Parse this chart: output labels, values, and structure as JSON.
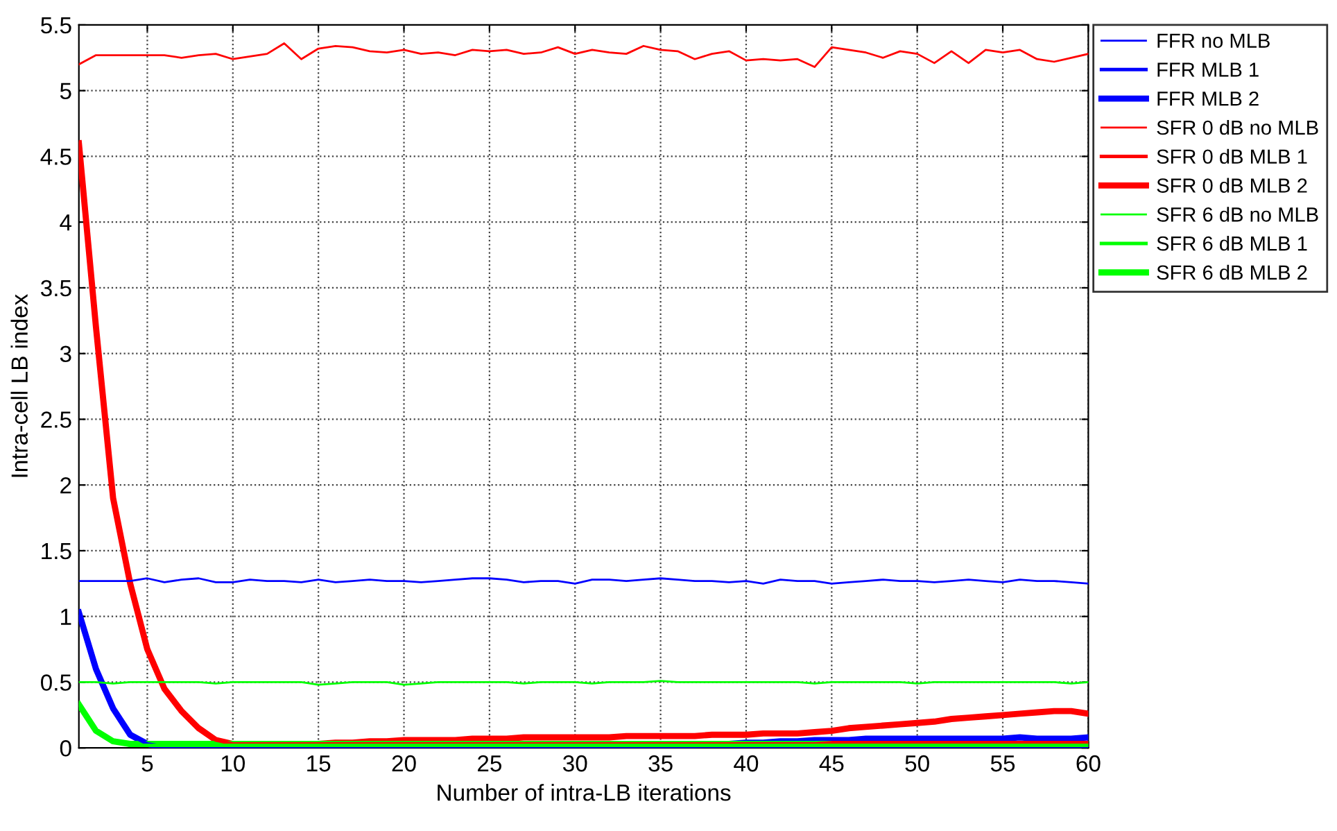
{
  "chart_data": {
    "type": "line",
    "xlabel": "Number of intra-LB iterations",
    "ylabel": "Intra-cell LB index",
    "x": [
      1,
      2,
      3,
      4,
      5,
      6,
      7,
      8,
      9,
      10,
      11,
      12,
      13,
      14,
      15,
      16,
      17,
      18,
      19,
      20,
      21,
      22,
      23,
      24,
      25,
      26,
      27,
      28,
      29,
      30,
      31,
      32,
      33,
      34,
      35,
      36,
      37,
      38,
      39,
      40,
      41,
      42,
      43,
      44,
      45,
      46,
      47,
      48,
      49,
      50,
      51,
      52,
      53,
      54,
      55,
      56,
      57,
      58,
      59,
      60
    ],
    "xlim": [
      1,
      60
    ],
    "xticks": [
      5,
      10,
      15,
      20,
      25,
      30,
      35,
      40,
      45,
      50,
      55,
      60
    ],
    "ylim": [
      0,
      5.5
    ],
    "yticks": [
      0,
      0.5,
      1,
      1.5,
      2,
      2.5,
      3,
      3.5,
      4,
      4.5,
      5,
      5.5
    ],
    "grid": true,
    "legend": "top right",
    "line_style": "solid",
    "marker": "none",
    "series": [
      {
        "name": "FFR no MLB",
        "color": "#0000ff",
        "values": [
          1.27,
          1.27,
          1.27,
          1.27,
          1.29,
          1.26,
          1.28,
          1.29,
          1.26,
          1.26,
          1.28,
          1.27,
          1.27,
          1.26,
          1.28,
          1.26,
          1.27,
          1.28,
          1.27,
          1.27,
          1.26,
          1.27,
          1.28,
          1.29,
          1.29,
          1.28,
          1.26,
          1.27,
          1.27,
          1.25,
          1.28,
          1.28,
          1.27,
          1.28,
          1.29,
          1.28,
          1.27,
          1.27,
          1.26,
          1.27,
          1.25,
          1.28,
          1.27,
          1.27,
          1.25,
          1.26,
          1.27,
          1.28,
          1.27,
          1.27,
          1.26,
          1.27,
          1.28,
          1.27,
          1.26,
          1.28,
          1.27,
          1.27,
          1.26,
          1.25
        ]
      },
      {
        "name": "FFR MLB 1",
        "color": "#0000ff",
        "values": [
          1.0,
          0.6,
          0.3,
          0.1,
          0.03,
          0.01,
          0.01,
          0.01,
          0.01,
          0.01,
          0.01,
          0.01,
          0.01,
          0.01,
          0.01,
          0.01,
          0.01,
          0.01,
          0.01,
          0.01,
          0.01,
          0.01,
          0.01,
          0.01,
          0.01,
          0.01,
          0.01,
          0.01,
          0.01,
          0.01,
          0.01,
          0.01,
          0.01,
          0.01,
          0.01,
          0.01,
          0.01,
          0.01,
          0.01,
          0.01,
          0.01,
          0.01,
          0.01,
          0.01,
          0.01,
          0.01,
          0.01,
          0.01,
          0.01,
          0.01,
          0.01,
          0.01,
          0.01,
          0.01,
          0.01,
          0.01,
          0.01,
          0.01,
          0.01,
          0.01
        ]
      },
      {
        "name": "FFR MLB 2",
        "color": "#0000ff",
        "values": [
          1.03,
          0.6,
          0.3,
          0.1,
          0.03,
          0.0,
          0.0,
          0.0,
          0.0,
          0.0,
          0.0,
          0.0,
          0.0,
          0.0,
          0.0,
          0.0,
          0.0,
          0.0,
          0.0,
          0.0,
          0.0,
          0.0,
          0.0,
          0.0,
          0.0,
          0.0,
          0.0,
          0.0,
          0.0,
          0.0,
          0.01,
          0.01,
          0.01,
          0.01,
          0.02,
          0.02,
          0.02,
          0.03,
          0.03,
          0.04,
          0.04,
          0.05,
          0.05,
          0.06,
          0.06,
          0.06,
          0.07,
          0.07,
          0.07,
          0.07,
          0.07,
          0.07,
          0.07,
          0.07,
          0.07,
          0.08,
          0.07,
          0.07,
          0.07,
          0.08
        ]
      },
      {
        "name": "SFR 0 dB no MLB",
        "color": "#ff0000",
        "values": [
          5.2,
          5.27,
          5.27,
          5.27,
          5.27,
          5.27,
          5.25,
          5.27,
          5.28,
          5.24,
          5.26,
          5.28,
          5.36,
          5.24,
          5.32,
          5.34,
          5.33,
          5.3,
          5.29,
          5.31,
          5.28,
          5.29,
          5.27,
          5.31,
          5.3,
          5.31,
          5.28,
          5.29,
          5.33,
          5.28,
          5.31,
          5.29,
          5.28,
          5.34,
          5.31,
          5.3,
          5.24,
          5.28,
          5.3,
          5.23,
          5.24,
          5.23,
          5.24,
          5.18,
          5.33,
          5.31,
          5.29,
          5.25,
          5.3,
          5.28,
          5.21,
          5.3,
          5.21,
          5.31,
          5.29,
          5.31,
          5.24,
          5.22,
          5.25,
          5.28
        ]
      },
      {
        "name": "SFR 0 dB MLB 1",
        "color": "#ff0000",
        "values": [
          4.6,
          3.2,
          1.9,
          1.25,
          0.75,
          0.45,
          0.28,
          0.15,
          0.06,
          0.03,
          0.03,
          0.03,
          0.03,
          0.03,
          0.03,
          0.03,
          0.03,
          0.03,
          0.03,
          0.03,
          0.03,
          0.03,
          0.03,
          0.03,
          0.03,
          0.03,
          0.03,
          0.03,
          0.03,
          0.03,
          0.03,
          0.03,
          0.03,
          0.03,
          0.03,
          0.03,
          0.03,
          0.03,
          0.03,
          0.03,
          0.03,
          0.03,
          0.03,
          0.03,
          0.04,
          0.04,
          0.04,
          0.04,
          0.04,
          0.04,
          0.04,
          0.04,
          0.04,
          0.04,
          0.04,
          0.04,
          0.04,
          0.04,
          0.04,
          0.04
        ]
      },
      {
        "name": "SFR 0 dB MLB 2",
        "color": "#ff0000",
        "values": [
          4.6,
          3.2,
          1.9,
          1.25,
          0.75,
          0.45,
          0.28,
          0.15,
          0.06,
          0.03,
          0.03,
          0.03,
          0.03,
          0.03,
          0.03,
          0.04,
          0.04,
          0.05,
          0.05,
          0.06,
          0.06,
          0.06,
          0.06,
          0.07,
          0.07,
          0.07,
          0.08,
          0.08,
          0.08,
          0.08,
          0.08,
          0.08,
          0.09,
          0.09,
          0.09,
          0.09,
          0.09,
          0.1,
          0.1,
          0.1,
          0.11,
          0.11,
          0.11,
          0.12,
          0.13,
          0.15,
          0.16,
          0.17,
          0.18,
          0.19,
          0.2,
          0.22,
          0.23,
          0.24,
          0.25,
          0.26,
          0.27,
          0.28,
          0.28,
          0.26
        ]
      },
      {
        "name": "SFR 6 dB no MLB",
        "color": "#00ff00",
        "values": [
          0.5,
          0.5,
          0.49,
          0.5,
          0.5,
          0.5,
          0.5,
          0.5,
          0.49,
          0.5,
          0.5,
          0.5,
          0.5,
          0.5,
          0.48,
          0.49,
          0.5,
          0.5,
          0.5,
          0.48,
          0.49,
          0.5,
          0.5,
          0.5,
          0.5,
          0.5,
          0.49,
          0.5,
          0.5,
          0.5,
          0.49,
          0.5,
          0.5,
          0.5,
          0.51,
          0.5,
          0.5,
          0.5,
          0.5,
          0.5,
          0.5,
          0.5,
          0.5,
          0.49,
          0.5,
          0.5,
          0.5,
          0.5,
          0.5,
          0.49,
          0.5,
          0.5,
          0.5,
          0.5,
          0.5,
          0.5,
          0.5,
          0.5,
          0.49,
          0.5
        ]
      },
      {
        "name": "SFR 6 dB MLB 1",
        "color": "#00ff00",
        "values": [
          0.33,
          0.13,
          0.05,
          0.02,
          0.02,
          0.02,
          0.02,
          0.02,
          0.02,
          0.02,
          0.02,
          0.02,
          0.02,
          0.02,
          0.02,
          0.02,
          0.02,
          0.02,
          0.02,
          0.02,
          0.02,
          0.02,
          0.02,
          0.02,
          0.02,
          0.02,
          0.02,
          0.02,
          0.02,
          0.02,
          0.02,
          0.02,
          0.02,
          0.02,
          0.02,
          0.02,
          0.02,
          0.02,
          0.02,
          0.02,
          0.02,
          0.02,
          0.02,
          0.02,
          0.02,
          0.02,
          0.02,
          0.02,
          0.02,
          0.02,
          0.02,
          0.02,
          0.02,
          0.02,
          0.02,
          0.02,
          0.02,
          0.02,
          0.02,
          0.02
        ]
      },
      {
        "name": "SFR 6 dB MLB 2",
        "color": "#00ff00",
        "values": [
          0.33,
          0.13,
          0.05,
          0.03,
          0.03,
          0.03,
          0.03,
          0.03,
          0.03,
          0.03,
          0.03,
          0.03,
          0.03,
          0.03,
          0.03,
          0.03,
          0.03,
          0.03,
          0.03,
          0.03,
          0.03,
          0.03,
          0.03,
          0.03,
          0.03,
          0.03,
          0.03,
          0.03,
          0.03,
          0.03,
          0.03,
          0.03,
          0.03,
          0.03,
          0.03,
          0.03,
          0.03,
          0.03,
          0.03,
          0.03,
          0.03,
          0.03,
          0.03,
          0.03,
          0.03,
          0.03,
          0.03,
          0.03,
          0.03,
          0.03,
          0.03,
          0.03,
          0.03,
          0.03,
          0.03,
          0.03,
          0.03,
          0.03,
          0.03,
          0.03
        ]
      }
    ]
  }
}
